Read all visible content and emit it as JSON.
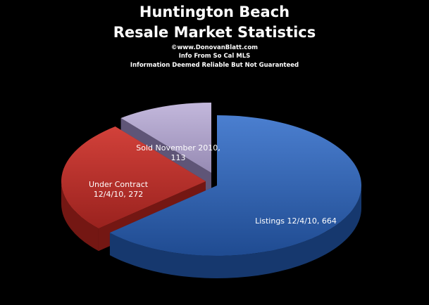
{
  "chart_data": {
    "type": "pie",
    "title": "Huntington Beach",
    "subtitle": "Resale Market Statistics",
    "notes": [
      "©www.DonovanBlatt.com",
      "Info  From So Cal MLS",
      "Information Deemed Reliable But Not Guaranteed"
    ],
    "slices": [
      {
        "label": "Listings 12/4/10, 664",
        "value": 664,
        "color": "#2f63b4"
      },
      {
        "label": "Under Contract 12/4/10, 272",
        "value": 272,
        "color": "#c1302b"
      },
      {
        "label": "Sold November 2010, 113",
        "value": 113,
        "color": "#a99bc4"
      }
    ],
    "data_labels": [
      [
        "Listings 12/4/10, 664"
      ],
      [
        "Under Contract",
        "12/4/10, 272"
      ],
      [
        "Sold November  2010,",
        "113"
      ]
    ]
  }
}
